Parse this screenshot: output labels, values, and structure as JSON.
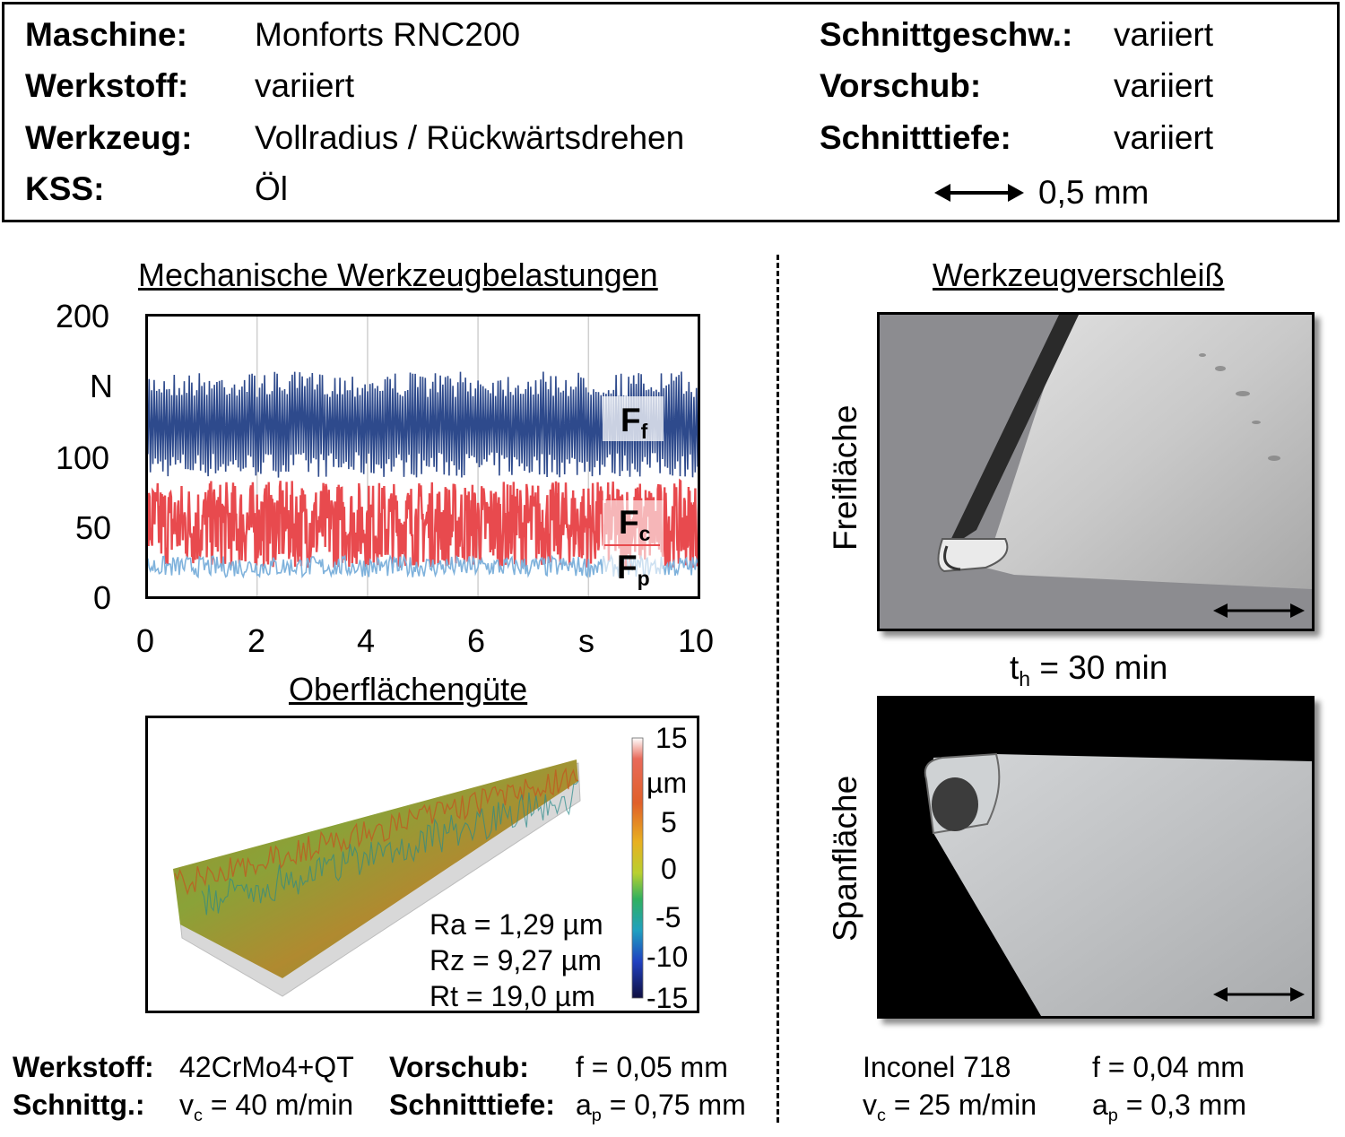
{
  "header": {
    "maschine_label": "Maschine:",
    "maschine_value": "Monforts RNC200",
    "werkstoff_label": "Werkstoff:",
    "werkstoff_value": "variiert",
    "werkzeug_label": "Werkzeug:",
    "werkzeug_value": "Vollradius / Rückwärtsdrehen",
    "kss_label": "KSS:",
    "kss_value": "Öl",
    "schnittgeschw_label": "Schnittgeschw.:",
    "schnittgeschw_value": "variiert",
    "vorschub_label": "Vorschub:",
    "vorschub_value": "variiert",
    "schnitttiefe_label": "Schnitttiefe:",
    "schnitttiefe_value": "variiert",
    "scale_text": "0,5 mm"
  },
  "force_section": {
    "title": "Mechanische Werkzeugbelastungen",
    "y_unit": "N",
    "x_unit": "s",
    "label_ff": "F",
    "label_ff_sub": "f",
    "label_fc": "F",
    "label_fc_sub": "c",
    "label_fp": "F",
    "label_fp_sub": "p"
  },
  "chart_data": {
    "type": "line",
    "x_ticks": [
      0,
      2,
      4,
      6,
      10
    ],
    "y_ticks": [
      0,
      50,
      100,
      200
    ],
    "xlim": [
      0,
      10
    ],
    "ylim": [
      0,
      200
    ],
    "grid": true,
    "series": [
      {
        "name": "Ff",
        "color": "#2e4a8c",
        "min": 85,
        "max": 160,
        "mean": 130
      },
      {
        "name": "Fc",
        "color": "#e84a4e",
        "min": 15,
        "max": 80,
        "mean": 52
      },
      {
        "name": "Fp",
        "color": "#7fb2dc",
        "min": 15,
        "max": 30,
        "mean": 22
      }
    ]
  },
  "surface_section": {
    "title": "Oberflächengüte",
    "colorbar_ticks": [
      "15",
      "µm",
      "5",
      "0",
      "-5",
      "-10",
      "-15"
    ],
    "ra": "Ra = 1,29 µm",
    "rz": "Rz = 9,27 µm",
    "rt": "Rt = 19,0 µm"
  },
  "wear_section": {
    "title": "Werkzeugverschleiß",
    "freiflaeche_label": "Freifläche",
    "spanflaeche_label": "Spanfläche",
    "th_prefix": "t",
    "th_sub": "h",
    "th_value": " = 30 min"
  },
  "bottom_left": {
    "werkstoff_label": "Werkstoff:",
    "werkstoff_value": "42CrMo4+QT",
    "vorschub_label": "Vorschub:",
    "vorschub_value": "f = 0,05 mm",
    "schnittg_label": "Schnittg.:",
    "vc_prefix": "v",
    "vc_sub": "c",
    "vc_value": " = 40 m/min",
    "schnitttiefe_label": "Schnitttiefe:",
    "ap_prefix": "a",
    "ap_sub": "p",
    "ap_value": " = 0,75 mm"
  },
  "bottom_right": {
    "werkstoff_value": "Inconel 718",
    "vorschub_value": "f = 0,04 mm",
    "vc_prefix": "v",
    "vc_sub": "c",
    "vc_value": " = 25 m/min",
    "ap_prefix": "a",
    "ap_sub": "p",
    "ap_value": " = 0,3 mm"
  }
}
